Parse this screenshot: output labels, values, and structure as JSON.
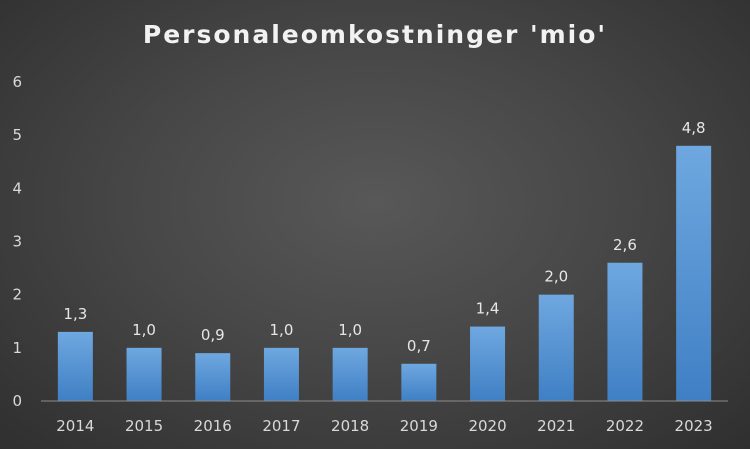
{
  "chart_data": {
    "type": "bar",
    "title": "Personaleomkostninger 'mio'",
    "xlabel": "",
    "ylabel": "",
    "categories": [
      "2014",
      "2015",
      "2016",
      "2017",
      "2018",
      "2019",
      "2020",
      "2021",
      "2022",
      "2023"
    ],
    "values": [
      1.3,
      1.0,
      0.9,
      1.0,
      1.0,
      0.7,
      1.4,
      2.0,
      2.6,
      4.8
    ],
    "data_labels": [
      "1,3",
      "1,0",
      "0,9",
      "1,0",
      "1,0",
      "0,7",
      "1,4",
      "2,0",
      "2,6",
      "4,8"
    ],
    "ylim": [
      0,
      6
    ],
    "yticks": [
      "0",
      "1",
      "2",
      "3",
      "4",
      "5",
      "6"
    ],
    "grid": false,
    "legend": "none",
    "colors": {
      "bar_top": "#6fa8e0",
      "bar_bottom": "#3f7fc4",
      "axis": "#8c8c8c"
    }
  }
}
